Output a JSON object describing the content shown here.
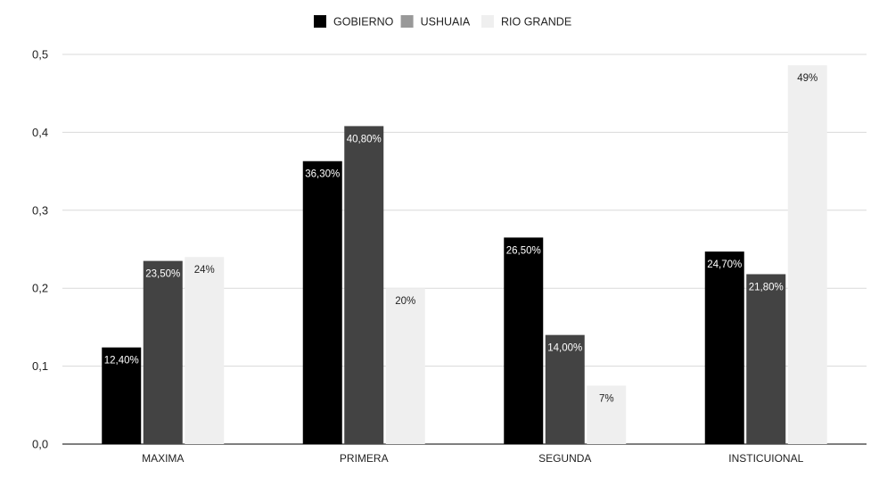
{
  "chart_data": {
    "type": "bar",
    "categories": [
      "MAXIMA",
      "PRIMERA",
      "SEGUNDA",
      "INSTICUIONAL"
    ],
    "series": [
      {
        "name": "GOBIERNO",
        "color": "#000000",
        "values": [
          0.124,
          0.363,
          0.265,
          0.247
        ],
        "labels": [
          "12,40%",
          "36,30%",
          "26,50%",
          "24,70%"
        ],
        "label_color": "#ffffff"
      },
      {
        "name": "USHUAIA",
        "color": "#434343",
        "values": [
          0.235,
          0.408,
          0.14,
          0.218
        ],
        "labels": [
          "23,50%",
          "40,80%",
          "14,00%",
          "21,80%"
        ],
        "label_color": "#ffffff"
      },
      {
        "name": "RIO GRANDE",
        "color": "#efefef",
        "values": [
          0.24,
          0.2,
          0.075,
          0.486
        ],
        "labels": [
          "24%",
          "20%",
          "7%",
          "49%"
        ],
        "label_color": "#222222"
      }
    ],
    "legend_swatch_colors": [
      "#000000",
      "#999999",
      "#efefef"
    ],
    "yticks": [
      "0,0",
      "0,1",
      "0,2",
      "0,3",
      "0,4",
      "0,5"
    ],
    "ylim": [
      0,
      0.5
    ],
    "grid": true,
    "legend_position": "top-center",
    "title": "",
    "xlabel": "",
    "ylabel": ""
  }
}
